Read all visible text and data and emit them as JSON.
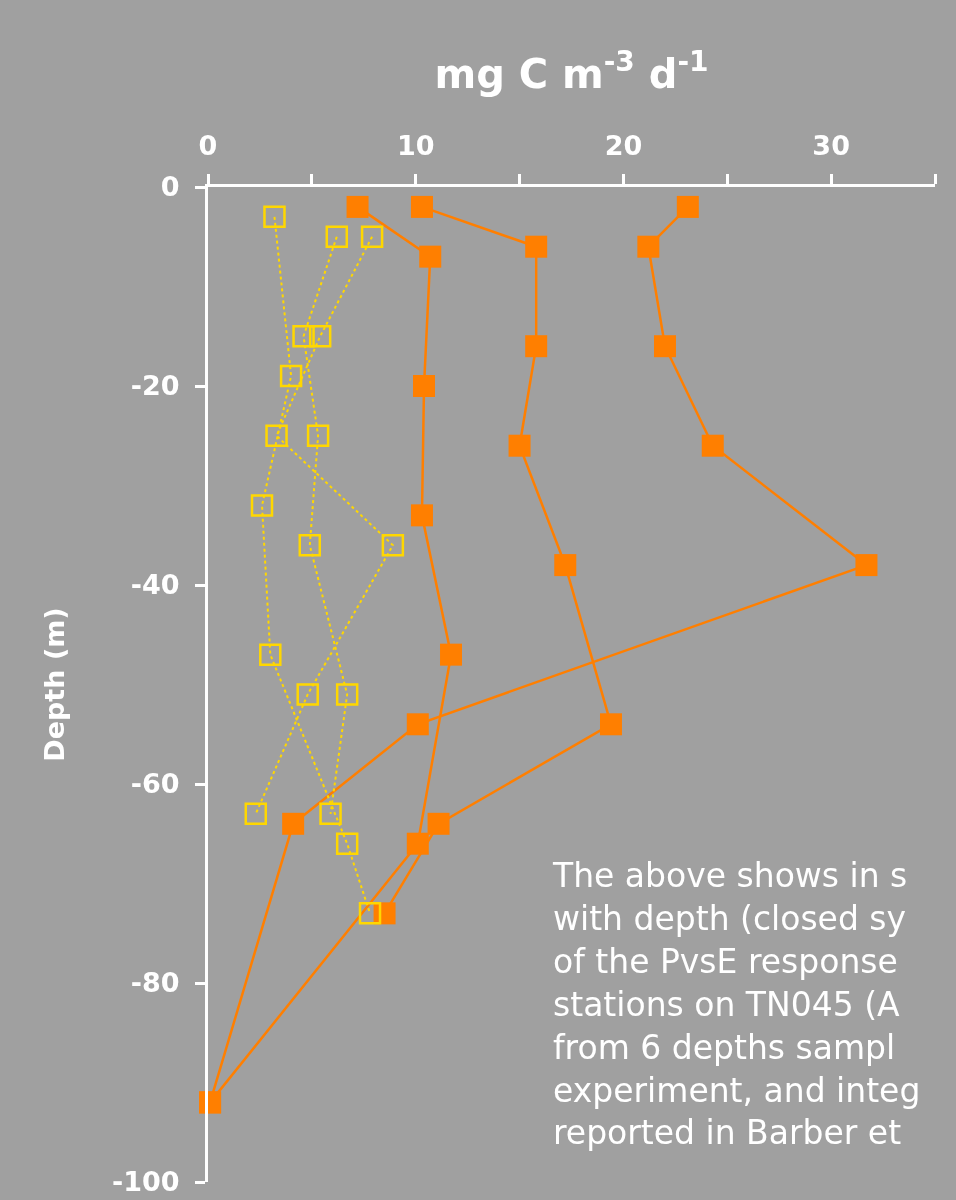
{
  "chart_data": {
    "type": "line",
    "xlabel": "mg C m$^{-3}$ d$^{-1}$",
    "ylabel": "Depth (m)",
    "xlim": [
      0,
      35
    ],
    "xticks": [
      0,
      {
        "value": 5,
        "label": null
      },
      10,
      {
        "value": 15,
        "label": null
      },
      20,
      {
        "value": 25,
        "label": null
      },
      30,
      {
        "value": 35,
        "label": null
      }
    ],
    "ylim": [
      -100,
      0
    ],
    "yticks": [
      0,
      -20,
      -40,
      -60,
      -80,
      -100
    ],
    "marker": "square",
    "series": [
      {
        "color": "#ff7f00",
        "line_style": "solid",
        "x": [
          7.2,
          10.7,
          10.4,
          10.3,
          11.7,
          10.1,
          0.1
        ],
        "values": [
          -2,
          -7,
          -20,
          -33,
          -47,
          -66,
          -92
        ]
      },
      {
        "color": "#ff7f00",
        "line_style": "solid",
        "x": [
          10.3,
          15.8,
          15.8,
          15.0,
          17.2,
          19.4,
          11.1,
          8.5
        ],
        "values": [
          -2,
          -6,
          -16,
          -26,
          -38,
          -54,
          -64,
          -73
        ]
      },
      {
        "color": "#ff7f00",
        "line_style": "solid",
        "x": [
          23.1,
          21.2,
          22.0,
          24.3,
          31.7,
          10.1,
          4.1,
          0.1
        ],
        "values": [
          -2,
          -6,
          -16,
          -26,
          -38,
          -54,
          -64,
          -92
        ]
      },
      {
        "color": "#ffd700",
        "line_style": "dashed",
        "x": [
          3.2,
          4.0,
          2.6,
          3.0,
          6.7,
          7.8
        ],
        "values": [
          -3,
          -19,
          -32,
          -47,
          -66,
          -73
        ]
      },
      {
        "color": "#ffd700",
        "line_style": "dashed",
        "x": [
          6.2,
          4.6,
          5.3,
          4.9,
          6.7,
          5.9
        ],
        "values": [
          -5,
          -15,
          -25,
          -36,
          -51,
          -63
        ]
      },
      {
        "color": "#ffd700",
        "line_style": "dashed",
        "x": [
          7.9,
          5.4,
          3.3,
          8.9,
          4.8,
          2.3
        ],
        "values": [
          -5,
          -15,
          -25,
          -36,
          -51,
          -63
        ]
      }
    ],
    "annotations": [
      "The above shows in s\nwith depth (closed sy\nof the PvsE response\nstations on TN045 (A\nfrom 6 depths sampl\nexperiment, and integ\nreported in Barber et"
    ]
  }
}
